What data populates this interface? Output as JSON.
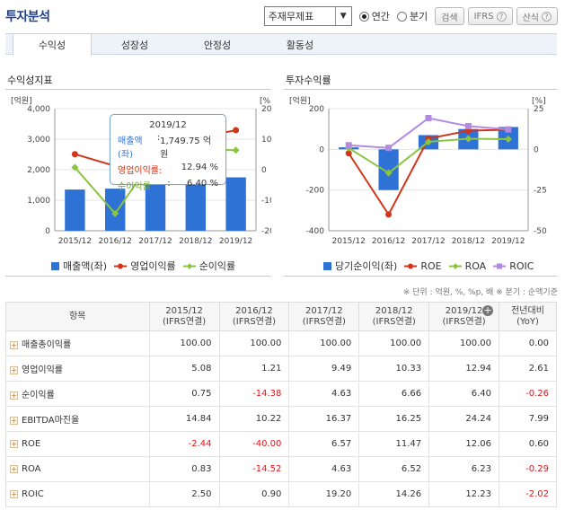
{
  "header": {
    "title": "투자분석",
    "select_value": "주재무제표",
    "radio_annual": "연간",
    "radio_quarter": "분기",
    "search_btn": "검색",
    "ifrs_btn": "IFRS",
    "calc_btn": "산식"
  },
  "tabs": [
    "수익성",
    "성장성",
    "안정성",
    "활동성"
  ],
  "left_chart": {
    "title": "수익성지표",
    "left_unit": "[억원]",
    "right_unit": "[%]",
    "legend": [
      "매출액(좌)",
      "영업이익률",
      "순이익률"
    ],
    "tooltip": {
      "period": "2019/12",
      "rows": [
        {
          "label": "매출액(좌)",
          "sep": ":",
          "value": "1,749.75 억원"
        },
        {
          "label": "영업이익률:",
          "sep": "",
          "value": "12.94 %"
        },
        {
          "label": "순이익률",
          "sep": ":",
          "value": "6.40 %"
        }
      ]
    }
  },
  "right_chart": {
    "title": "투자수익률",
    "left_unit": "[억원]",
    "right_unit": "[%]",
    "legend": [
      "당기순이익(좌)",
      "ROE",
      "ROA",
      "ROIC"
    ]
  },
  "chart_data": [
    {
      "type": "bar",
      "title": "수익성지표",
      "categories": [
        "2015/12",
        "2016/12",
        "2017/12",
        "2018/12",
        "2019/12"
      ],
      "ylim_left": [
        0,
        4000
      ],
      "ylim_right": [
        -20,
        20
      ],
      "left_ticks": [
        "4,000",
        "3,000",
        "2,000",
        "1,000",
        "0"
      ],
      "right_ticks": [
        "20",
        "10",
        "0",
        "-10",
        "-20"
      ],
      "series": [
        {
          "name": "매출액(좌)",
          "kind": "bar",
          "axis": "left",
          "color": "#2f72d6",
          "values": [
            1350,
            1380,
            1580,
            1600,
            1749.75
          ]
        },
        {
          "name": "영업이익률",
          "kind": "line",
          "axis": "right",
          "color": "#d1361b",
          "values": [
            5.08,
            1.21,
            9.49,
            10.33,
            12.94
          ]
        },
        {
          "name": "순이익률",
          "kind": "line",
          "axis": "right",
          "color": "#8bc53f",
          "values": [
            0.75,
            -14.38,
            4.63,
            6.66,
            6.4
          ]
        }
      ]
    },
    {
      "type": "bar",
      "title": "투자수익률",
      "categories": [
        "2015/12",
        "2016/12",
        "2017/12",
        "2018/12",
        "2019/12"
      ],
      "ylim_left": [
        -400,
        200
      ],
      "ylim_right": [
        -50,
        25
      ],
      "left_ticks": [
        "200",
        "0",
        "-200",
        "-400"
      ],
      "right_ticks": [
        "25",
        "0",
        "-25",
        "-50"
      ],
      "series": [
        {
          "name": "당기순이익(좌)",
          "kind": "bar",
          "axis": "left",
          "color": "#2f72d6",
          "values": [
            10,
            -200,
            70,
            100,
            110
          ]
        },
        {
          "name": "ROE",
          "kind": "line",
          "axis": "right",
          "color": "#d1361b",
          "values": [
            -2.44,
            -40.0,
            6.57,
            11.47,
            12.06
          ]
        },
        {
          "name": "ROA",
          "kind": "line",
          "axis": "right",
          "color": "#8bc53f",
          "values": [
            0.83,
            -14.52,
            4.63,
            6.52,
            6.23
          ]
        },
        {
          "name": "ROIC",
          "kind": "line",
          "axis": "right",
          "color": "#b28be0",
          "values": [
            2.5,
            0.9,
            19.2,
            14.26,
            12.23
          ]
        }
      ]
    }
  ],
  "note": "※ 단위 : 억원, %, %p, 배    ※ 분기 : 순액기준",
  "table": {
    "header_item": "항목",
    "columns": [
      {
        "period": "2015/12",
        "basis": "(IFRS연결)"
      },
      {
        "period": "2016/12",
        "basis": "(IFRS연결)"
      },
      {
        "period": "2017/12",
        "basis": "(IFRS연결)"
      },
      {
        "period": "2018/12",
        "basis": "(IFRS연결)"
      },
      {
        "period": "2019/12",
        "basis": "(IFRS연결)"
      }
    ],
    "yoy_header": "전년대비",
    "yoy_sub": "(YoY)",
    "rows": [
      {
        "label": "매출총이익률",
        "values": [
          "100.00",
          "100.00",
          "100.00",
          "100.00",
          "100.00"
        ],
        "yoy": "0.00"
      },
      {
        "label": "영업이익률",
        "values": [
          "5.08",
          "1.21",
          "9.49",
          "10.33",
          "12.94"
        ],
        "yoy": "2.61"
      },
      {
        "label": "순이익률",
        "values": [
          "0.75",
          "-14.38",
          "4.63",
          "6.66",
          "6.40"
        ],
        "yoy": "-0.26"
      },
      {
        "label": "EBITDA마진율",
        "values": [
          "14.84",
          "10.22",
          "16.37",
          "16.25",
          "24.24"
        ],
        "yoy": "7.99"
      },
      {
        "label": "ROE",
        "values": [
          "-2.44",
          "-40.00",
          "6.57",
          "11.47",
          "12.06"
        ],
        "yoy": "0.60"
      },
      {
        "label": "ROA",
        "values": [
          "0.83",
          "-14.52",
          "4.63",
          "6.52",
          "6.23"
        ],
        "yoy": "-0.29"
      },
      {
        "label": "ROIC",
        "values": [
          "2.50",
          "0.90",
          "19.20",
          "14.26",
          "12.23"
        ],
        "yoy": "-2.02"
      }
    ]
  }
}
